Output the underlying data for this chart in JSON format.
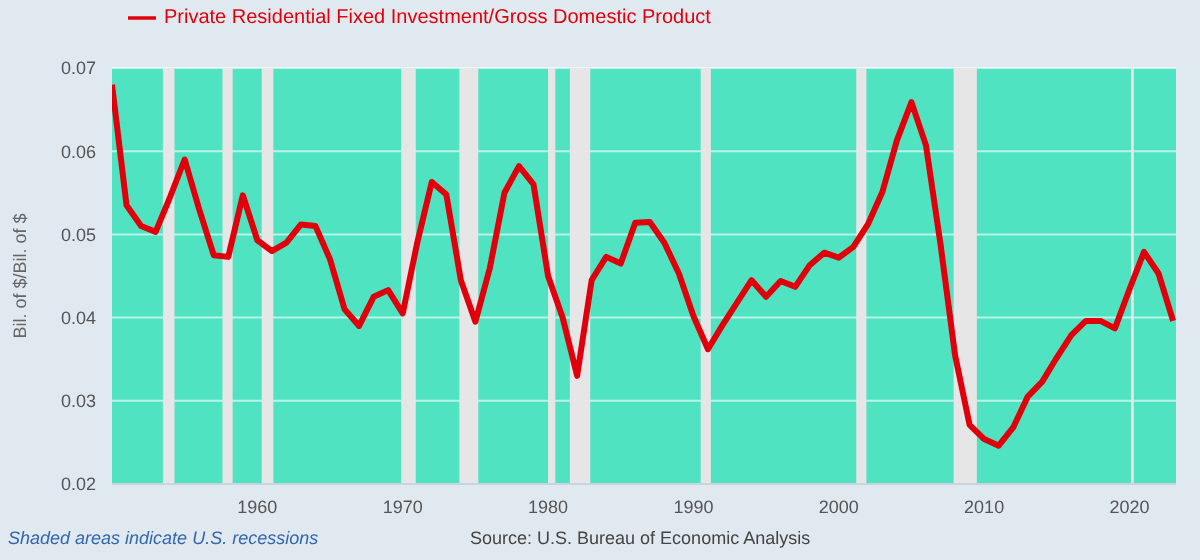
{
  "chart_data": {
    "type": "line",
    "ylabel": "Bil. of $/Bil. of $",
    "annotations": [
      "Shaded areas indicate U.S. recessions",
      "Source: U.S. Bureau of Economic Analysis"
    ],
    "x": [
      1950,
      1951,
      1952,
      1953,
      1954,
      1955,
      1956,
      1957,
      1958,
      1959,
      1960,
      1961,
      1962,
      1963,
      1964,
      1965,
      1966,
      1967,
      1968,
      1969,
      1970,
      1971,
      1972,
      1973,
      1974,
      1975,
      1976,
      1977,
      1978,
      1979,
      1980,
      1981,
      1982,
      1983,
      1984,
      1985,
      1986,
      1987,
      1988,
      1989,
      1990,
      1991,
      1992,
      1993,
      1994,
      1995,
      1996,
      1997,
      1998,
      1999,
      2000,
      2001,
      2002,
      2003,
      2004,
      2005,
      2006,
      2007,
      2008,
      2009,
      2010,
      2011,
      2012,
      2013,
      2014,
      2015,
      2016,
      2017,
      2018,
      2019,
      2020,
      2021,
      2022,
      2023
    ],
    "series": [
      {
        "name": "Private Residential Fixed Investment/Gross Domestic Product",
        "color": "#e0000b",
        "values": [
          0.068,
          0.0535,
          0.051,
          0.0503,
          0.0545,
          0.059,
          0.053,
          0.0475,
          0.0473,
          0.0547,
          0.0493,
          0.048,
          0.049,
          0.0512,
          0.051,
          0.047,
          0.041,
          0.039,
          0.0425,
          0.0433,
          0.0405,
          0.049,
          0.0563,
          0.0548,
          0.0445,
          0.0395,
          0.046,
          0.055,
          0.0582,
          0.056,
          0.045,
          0.04,
          0.033,
          0.0445,
          0.0473,
          0.0465,
          0.0514,
          0.0515,
          0.049,
          0.0453,
          0.0402,
          0.0362,
          0.0391,
          0.0418,
          0.0445,
          0.0425,
          0.0444,
          0.0437,
          0.0463,
          0.0478,
          0.0472,
          0.0485,
          0.0512,
          0.0551,
          0.0613,
          0.0659,
          0.0607,
          0.0488,
          0.0355,
          0.0271,
          0.0254,
          0.0246,
          0.0268,
          0.0305,
          0.0323,
          0.0352,
          0.0379,
          0.0396,
          0.0396,
          0.0387,
          0.0434,
          0.0479,
          0.0453,
          0.0396
        ]
      }
    ],
    "xlim": [
      1950,
      2023.2
    ],
    "xticks": [
      1960,
      1970,
      1980,
      1990,
      2000,
      2010,
      2020
    ],
    "ylim": [
      0.02,
      0.07
    ],
    "yticks": [
      0.02,
      0.03,
      0.04,
      0.05,
      0.06,
      0.07
    ],
    "bands": [
      {
        "axis": "x",
        "from": 1953.5,
        "to": 1954.3,
        "color": "#e6e6e6"
      },
      {
        "axis": "x",
        "from": 1957.6,
        "to": 1958.3,
        "color": "#e6e6e6"
      },
      {
        "axis": "x",
        "from": 1960.3,
        "to": 1961.1,
        "color": "#e6e6e6"
      },
      {
        "axis": "x",
        "from": 1969.9,
        "to": 1970.9,
        "color": "#e6e6e6"
      },
      {
        "axis": "x",
        "from": 1973.9,
        "to": 1975.2,
        "color": "#e6e6e6"
      },
      {
        "axis": "x",
        "from": 1980.0,
        "to": 1980.5,
        "color": "#e6e6e6"
      },
      {
        "axis": "x",
        "from": 1981.5,
        "to": 1982.9,
        "color": "#e6e6e6"
      },
      {
        "axis": "x",
        "from": 1990.5,
        "to": 1991.2,
        "color": "#e6e6e6"
      },
      {
        "axis": "x",
        "from": 2001.2,
        "to": 2001.9,
        "color": "#e6e6e6"
      },
      {
        "axis": "x",
        "from": 2007.9,
        "to": 2009.5,
        "color": "#e6e6e6"
      },
      {
        "axis": "x",
        "from": 2020.1,
        "to": 2020.3,
        "color": "#e6e6e6"
      }
    ],
    "grid": "y",
    "legend": "top left"
  }
}
